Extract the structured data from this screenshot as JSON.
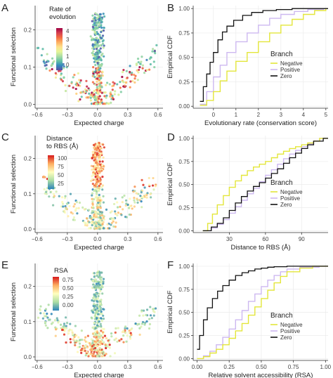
{
  "colors": {
    "Negative": "#e3e63a",
    "Positive": "#cdb8f0",
    "Zero": "#111111",
    "spectral": [
      "#5e4fa2",
      "#3288bd",
      "#66c2a5",
      "#abdda4",
      "#e6f598",
      "#fee08b",
      "#fdae61",
      "#f46d43",
      "#d53e4f",
      "#9e0142"
    ],
    "rbs_scale": [
      "#d7191c",
      "#fdae61",
      "#ffffbf",
      "#abdda4",
      "#2b83ba"
    ],
    "rsa_scale": [
      "#d7191c",
      "#fdae61",
      "#ffffbf",
      "#abdda4",
      "#2b83ba"
    ]
  },
  "panel_letters": [
    "A",
    "B",
    "C",
    "D",
    "E",
    "F"
  ],
  "chart_data": [
    {
      "panel": "A",
      "type": "scatter",
      "xlabel": "Expected charge",
      "ylabel": "Functional selection",
      "xticks": [
        "−0.6",
        "−0.3",
        "0.0",
        "0.3",
        "0.6"
      ],
      "xtick_values": [
        -0.6,
        -0.3,
        0.0,
        0.3,
        0.6
      ],
      "yticks": [
        "0.0",
        "0.1",
        "0.2"
      ],
      "ytick_values": [
        0.0,
        0.1,
        0.2
      ],
      "xlim": [
        -0.62,
        0.65
      ],
      "ylim": [
        -0.01,
        0.265
      ],
      "color_legend": {
        "title_lines": [
          "Rate of",
          "evolution"
        ],
        "tick_labels": [
          "4",
          "3",
          "2",
          "1",
          "0"
        ],
        "range": [
          0,
          4.3
        ]
      },
      "seed": 11,
      "cloud_color_var": "rate"
    },
    {
      "panel": "B",
      "type": "line",
      "xlabel": "Evolutionary rate (conservation score)",
      "ylabel": "Empirical CDF",
      "xticks": [
        "0",
        "1",
        "2",
        "3",
        "4",
        "5"
      ],
      "xtick_values": [
        0,
        1,
        2,
        3,
        4,
        5
      ],
      "yticks": [
        "0.00",
        "0.25",
        "0.50",
        "0.75",
        "1.00"
      ],
      "ytick_values": [
        0,
        0.25,
        0.5,
        0.75,
        1.0
      ],
      "xlim": [
        -0.9,
        5.1
      ],
      "ylim": [
        -0.02,
        1.03
      ],
      "legend": {
        "title": "Branch",
        "entries": [
          "Negative",
          "Positive",
          "Zero"
        ],
        "position": "right"
      },
      "series": [
        {
          "name": "Zero",
          "x": [
            -0.6,
            -0.45,
            -0.3,
            -0.15,
            0.0,
            0.2,
            0.4,
            0.6,
            0.9,
            1.3,
            1.7,
            2.2,
            2.8,
            3.5,
            4.4
          ],
          "y": [
            0.05,
            0.2,
            0.33,
            0.45,
            0.55,
            0.68,
            0.76,
            0.82,
            0.88,
            0.93,
            0.96,
            0.98,
            0.99,
            1.0,
            1.0
          ]
        },
        {
          "name": "Positive",
          "x": [
            -0.6,
            -0.3,
            0.0,
            0.3,
            0.6,
            1.0,
            1.5,
            2.0,
            2.5,
            3.0,
            3.6,
            4.2,
            4.9
          ],
          "y": [
            0.02,
            0.15,
            0.3,
            0.42,
            0.55,
            0.66,
            0.75,
            0.83,
            0.9,
            0.94,
            0.97,
            0.99,
            1.0
          ]
        },
        {
          "name": "Negative",
          "x": [
            -0.6,
            -0.3,
            0.0,
            0.3,
            0.6,
            1.0,
            1.5,
            2.0,
            2.5,
            3.0,
            3.5,
            4.0,
            4.5,
            5.0
          ],
          "y": [
            0.01,
            0.06,
            0.15,
            0.26,
            0.36,
            0.46,
            0.55,
            0.66,
            0.75,
            0.83,
            0.89,
            0.94,
            0.98,
            1.0
          ]
        }
      ]
    },
    {
      "panel": "C",
      "type": "scatter",
      "xlabel": "Expected charge",
      "ylabel": "Functional selection",
      "xticks": [
        "−0.6",
        "−0.3",
        "0.0",
        "0.3",
        "0.6"
      ],
      "xtick_values": [
        -0.6,
        -0.3,
        0.0,
        0.3,
        0.6
      ],
      "yticks": [
        "0.0",
        "0.1",
        "0.2"
      ],
      "ytick_values": [
        0.0,
        0.1,
        0.2
      ],
      "xlim": [
        -0.62,
        0.65
      ],
      "ylim": [
        -0.01,
        0.265
      ],
      "color_legend": {
        "title_lines": [
          "Distance",
          "to RBS (Å)"
        ],
        "tick_labels": [
          "100",
          "75",
          "50",
          "25"
        ],
        "range": [
          10,
          110
        ]
      },
      "seed": 23,
      "cloud_color_var": "distance"
    },
    {
      "panel": "D",
      "type": "line",
      "xlabel": "Distance to RBS (Å)",
      "ylabel": "Empirical CDF",
      "xticks": [
        "30",
        "60",
        "90"
      ],
      "xtick_values": [
        30,
        60,
        90
      ],
      "yticks": [
        "0.00",
        "0.25",
        "0.50",
        "0.75",
        "1.00"
      ],
      "ytick_values": [
        0,
        0.25,
        0.5,
        0.75,
        1.0
      ],
      "xlim": [
        0,
        112
      ],
      "ylim": [
        -0.02,
        1.03
      ],
      "legend": {
        "title": "Branch",
        "entries": [
          "Negative",
          "Positive",
          "Zero"
        ],
        "position": "right"
      },
      "series": [
        {
          "name": "Negative",
          "x": [
            8,
            12,
            16,
            20,
            25,
            30,
            35,
            40,
            45,
            50,
            55,
            60,
            65,
            70,
            75,
            80,
            85,
            90,
            95,
            100,
            105
          ],
          "y": [
            0.0,
            0.08,
            0.18,
            0.28,
            0.38,
            0.47,
            0.54,
            0.6,
            0.65,
            0.69,
            0.72,
            0.75,
            0.79,
            0.83,
            0.86,
            0.89,
            0.91,
            0.93,
            0.95,
            0.97,
            1.0
          ]
        },
        {
          "name": "Positive",
          "x": [
            8,
            15,
            20,
            25,
            30,
            35,
            40,
            45,
            50,
            55,
            60,
            65,
            70,
            75,
            80,
            85,
            90,
            95,
            100,
            105
          ],
          "y": [
            0.0,
            0.03,
            0.07,
            0.12,
            0.19,
            0.26,
            0.33,
            0.4,
            0.46,
            0.53,
            0.6,
            0.66,
            0.72,
            0.78,
            0.83,
            0.87,
            0.91,
            0.94,
            0.97,
            1.0
          ]
        },
        {
          "name": "Zero",
          "x": [
            8,
            15,
            20,
            25,
            30,
            35,
            40,
            45,
            50,
            55,
            60,
            65,
            70,
            75,
            80,
            85,
            90,
            95,
            100,
            108
          ],
          "y": [
            0.0,
            0.04,
            0.08,
            0.14,
            0.22,
            0.3,
            0.37,
            0.43,
            0.48,
            0.52,
            0.57,
            0.62,
            0.67,
            0.73,
            0.79,
            0.84,
            0.89,
            0.93,
            0.97,
            1.0
          ]
        }
      ]
    },
    {
      "panel": "E",
      "type": "scatter",
      "xlabel": "Expected charge",
      "ylabel": "Functional selection",
      "xticks": [
        "−0.6",
        "−0.3",
        "0.0",
        "0.3",
        "0.6"
      ],
      "xtick_values": [
        -0.6,
        -0.3,
        0.0,
        0.3,
        0.6
      ],
      "yticks": [
        "0.0",
        "0.1",
        "0.2"
      ],
      "ytick_values": [
        0.0,
        0.1,
        0.2
      ],
      "xlim": [
        -0.62,
        0.65
      ],
      "ylim": [
        -0.01,
        0.265
      ],
      "color_legend": {
        "title_lines": [
          "RSA"
        ],
        "tick_labels": [
          "0.75",
          "0.50",
          "0.25",
          "0.00"
        ],
        "range": [
          0,
          0.85
        ]
      },
      "seed": 37,
      "cloud_color_var": "rsa"
    },
    {
      "panel": "F",
      "type": "line",
      "xlabel": "Relative solvent accessibility (RSA)",
      "ylabel": "Empirical CDF",
      "xticks": [
        "0.00",
        "0.25",
        "0.50",
        "0.75",
        "1.00"
      ],
      "xtick_values": [
        0,
        0.25,
        0.5,
        0.75,
        1.0
      ],
      "yticks": [
        "0.00",
        "0.25",
        "0.50",
        "0.75",
        "1.00"
      ],
      "ytick_values": [
        0,
        0.25,
        0.5,
        0.75,
        1.0
      ],
      "xlim": [
        -0.03,
        1.02
      ],
      "ylim": [
        -0.02,
        1.03
      ],
      "legend": {
        "title": "Branch",
        "entries": [
          "Negative",
          "Positive",
          "Zero"
        ],
        "position": "right"
      },
      "series": [
        {
          "name": "Zero",
          "x": [
            0.0,
            0.02,
            0.05,
            0.08,
            0.12,
            0.16,
            0.2,
            0.25,
            0.3,
            0.35,
            0.4,
            0.45,
            0.5,
            0.55,
            0.6,
            0.7,
            0.8
          ],
          "y": [
            0.1,
            0.25,
            0.42,
            0.55,
            0.65,
            0.73,
            0.79,
            0.85,
            0.9,
            0.93,
            0.95,
            0.97,
            0.98,
            0.99,
            0.995,
            1.0,
            1.0
          ]
        },
        {
          "name": "Positive",
          "x": [
            0.0,
            0.05,
            0.1,
            0.15,
            0.2,
            0.25,
            0.3,
            0.35,
            0.4,
            0.45,
            0.5,
            0.55,
            0.6,
            0.65,
            0.7,
            0.8,
            0.95
          ],
          "y": [
            0.0,
            0.03,
            0.08,
            0.15,
            0.23,
            0.32,
            0.42,
            0.52,
            0.62,
            0.7,
            0.78,
            0.85,
            0.9,
            0.94,
            0.97,
            0.99,
            1.0
          ]
        },
        {
          "name": "Negative",
          "x": [
            0.0,
            0.05,
            0.1,
            0.15,
            0.2,
            0.25,
            0.3,
            0.35,
            0.4,
            0.45,
            0.5,
            0.55,
            0.6,
            0.65,
            0.7,
            0.8,
            0.9
          ],
          "y": [
            0.0,
            0.02,
            0.06,
            0.1,
            0.15,
            0.22,
            0.3,
            0.38,
            0.47,
            0.56,
            0.65,
            0.74,
            0.82,
            0.89,
            0.94,
            0.98,
            1.0
          ]
        }
      ]
    }
  ]
}
